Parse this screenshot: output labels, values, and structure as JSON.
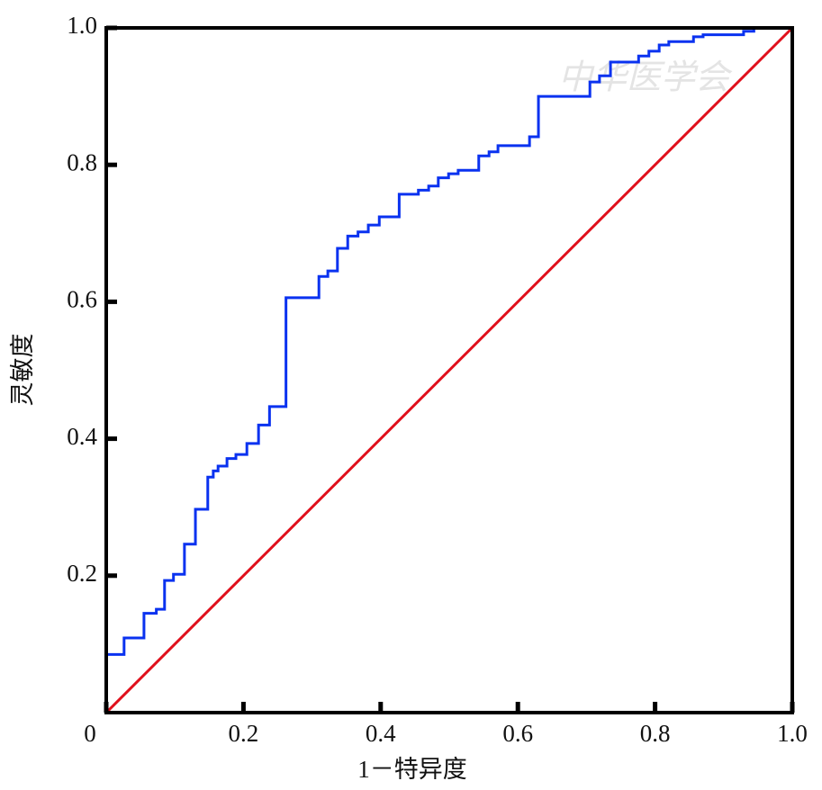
{
  "chart_data": {
    "type": "line",
    "xlabel": "1－特异度",
    "ylabel": "灵敏度",
    "watermark": "中华医学会",
    "xlim": [
      0,
      1
    ],
    "ylim": [
      0,
      1
    ],
    "xticks": [
      0,
      0.2,
      0.4,
      0.6,
      0.8,
      {
        "value": 1,
        "label": "1.0"
      }
    ],
    "yticks": [
      0.2,
      0.4,
      0.6,
      0.8,
      {
        "value": 1,
        "label": "1.0"
      }
    ],
    "series": [
      {
        "color": "#0a32f0",
        "drawstyle": "steps-post",
        "x": [
          0,
          0.026,
          0.055,
          0.073,
          0.085,
          0.098,
          0.114,
          0.13,
          0.148,
          0.156,
          0.163,
          0.176,
          0.189,
          0.205,
          0.222,
          0.238,
          0.262,
          0.31,
          0.323,
          0.337,
          0.352,
          0.367,
          0.382,
          0.398,
          0.427,
          0.455,
          0.47,
          0.484,
          0.499,
          0.513,
          0.543,
          0.558,
          0.571,
          0.617,
          0.63,
          0.705,
          0.719,
          0.735,
          0.776,
          0.791,
          0.806,
          0.82,
          0.856,
          0.87,
          0.929,
          0.944,
          1.0
        ],
        "values": [
          0.085,
          0.109,
          0.145,
          0.151,
          0.193,
          0.202,
          0.246,
          0.297,
          0.344,
          0.353,
          0.36,
          0.371,
          0.377,
          0.393,
          0.42,
          0.447,
          0.606,
          0.637,
          0.645,
          0.678,
          0.696,
          0.702,
          0.712,
          0.724,
          0.757,
          0.763,
          0.769,
          0.781,
          0.787,
          0.792,
          0.813,
          0.819,
          0.828,
          0.841,
          0.9,
          0.921,
          0.93,
          0.95,
          0.959,
          0.966,
          0.975,
          0.98,
          0.987,
          0.99,
          0.995,
          1.0,
          1.0
        ]
      },
      {
        "color": "#e0101c",
        "drawstyle": "straight",
        "x": [
          0,
          1
        ],
        "values": [
          0,
          1
        ]
      }
    ]
  }
}
